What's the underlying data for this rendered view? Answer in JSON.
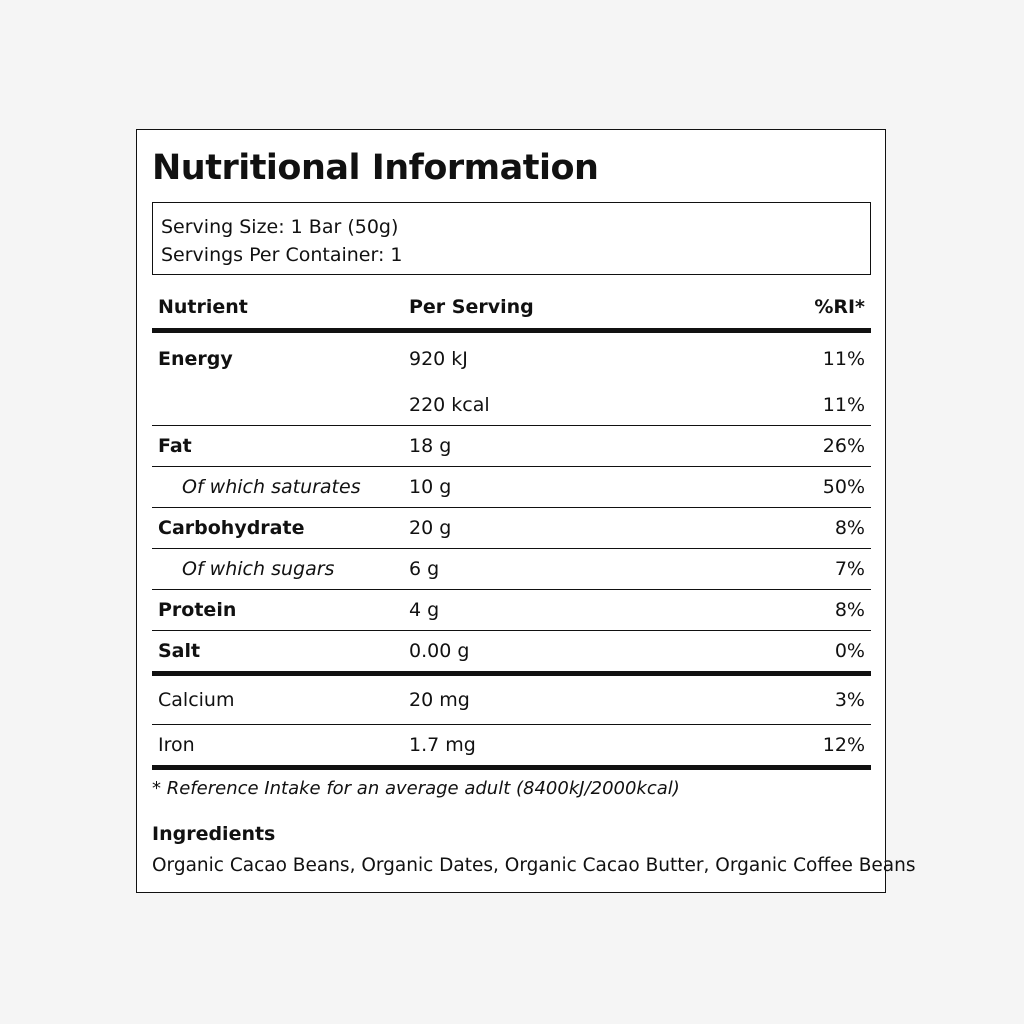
{
  "title": "Nutritional Information",
  "serving": {
    "size": "Serving Size: 1 Bar (50g)",
    "per_container": "Servings Per Container: 1"
  },
  "table": {
    "headers": {
      "nutrient": "Nutrient",
      "per_serving": "Per Serving",
      "ri": "%RI*"
    },
    "rows": [
      {
        "nutrient": "Energy",
        "per_serving": "920 kJ",
        "ri": "11%"
      },
      {
        "nutrient": "",
        "per_serving": "220 kcal",
        "ri": "11%"
      },
      {
        "nutrient": "Fat",
        "per_serving": "18 g",
        "ri": "26%"
      },
      {
        "nutrient": "Of which saturates",
        "per_serving": "10 g",
        "ri": "50%"
      },
      {
        "nutrient": "Carbohydrate",
        "per_serving": "20 g",
        "ri": "8%"
      },
      {
        "nutrient": "Of which sugars",
        "per_serving": "6 g",
        "ri": "7%"
      },
      {
        "nutrient": "Protein",
        "per_serving": "4 g",
        "ri": "8%"
      },
      {
        "nutrient": "Salt",
        "per_serving": "0.00 g",
        "ri": "0%"
      },
      {
        "nutrient": "Calcium",
        "per_serving": "20 mg",
        "ri": "3%"
      },
      {
        "nutrient": "Iron",
        "per_serving": "1.7 mg",
        "ri": "12%"
      }
    ]
  },
  "footnote": "* Reference Intake for an average adult (8400kJ/2000kcal)",
  "ingredients": {
    "title": "Ingredients",
    "text": "Organic Cacao Beans, Organic Dates, Organic Cacao Butter, Organic Coffee Beans"
  }
}
